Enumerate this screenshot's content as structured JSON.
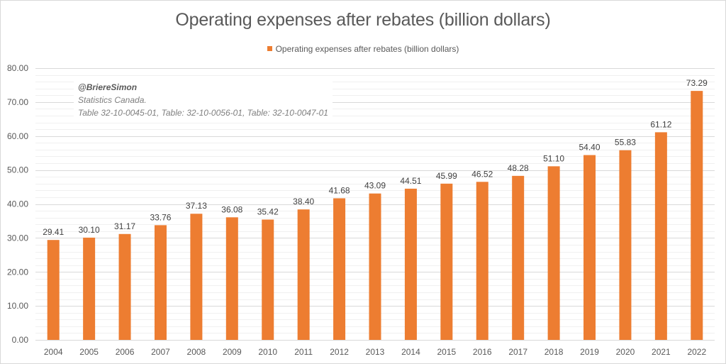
{
  "chart_data": {
    "type": "bar",
    "title": "Operating expenses after rebates (billion dollars)",
    "xlabel": "",
    "ylabel": "",
    "categories": [
      "2004",
      "2005",
      "2006",
      "2007",
      "2008",
      "2009",
      "2010",
      "2011",
      "2012",
      "2013",
      "2014",
      "2015",
      "2016",
      "2017",
      "2018",
      "2019",
      "2020",
      "2021",
      "2022"
    ],
    "series": [
      {
        "name": "Operating expenses after rebates (billion dollars)",
        "color": "#ED7D31",
        "values": [
          29.41,
          30.1,
          31.17,
          33.76,
          37.13,
          36.08,
          35.42,
          38.4,
          41.68,
          43.09,
          44.51,
          45.99,
          46.52,
          48.28,
          51.1,
          54.4,
          55.83,
          61.12,
          73.29
        ],
        "data_labels": [
          "29.41",
          "30.10",
          "31.17",
          "33.76",
          "37.13",
          "36.08",
          "35.42",
          "38.40",
          "41.68",
          "43.09",
          "44.51",
          "45.99",
          "46.52",
          "48.28",
          "51.10",
          "54.40",
          "55.83",
          "61.12",
          "73.29"
        ]
      }
    ],
    "ylim": [
      0,
      80
    ],
    "y_major_step": 10,
    "y_minor_step": 2,
    "y_tick_labels": [
      "0.00",
      "10.00",
      "20.00",
      "30.00",
      "40.00",
      "50.00",
      "60.00",
      "70.00",
      "80.00"
    ],
    "grid": true,
    "legend_position": "top-center",
    "annotation": {
      "handle": "@BriereSimon",
      "source": "Statistics Canada.",
      "tables": "Table 32-10-0045-01, Table: 32-10-0056-01, Table: 32-10-0047-01"
    }
  }
}
